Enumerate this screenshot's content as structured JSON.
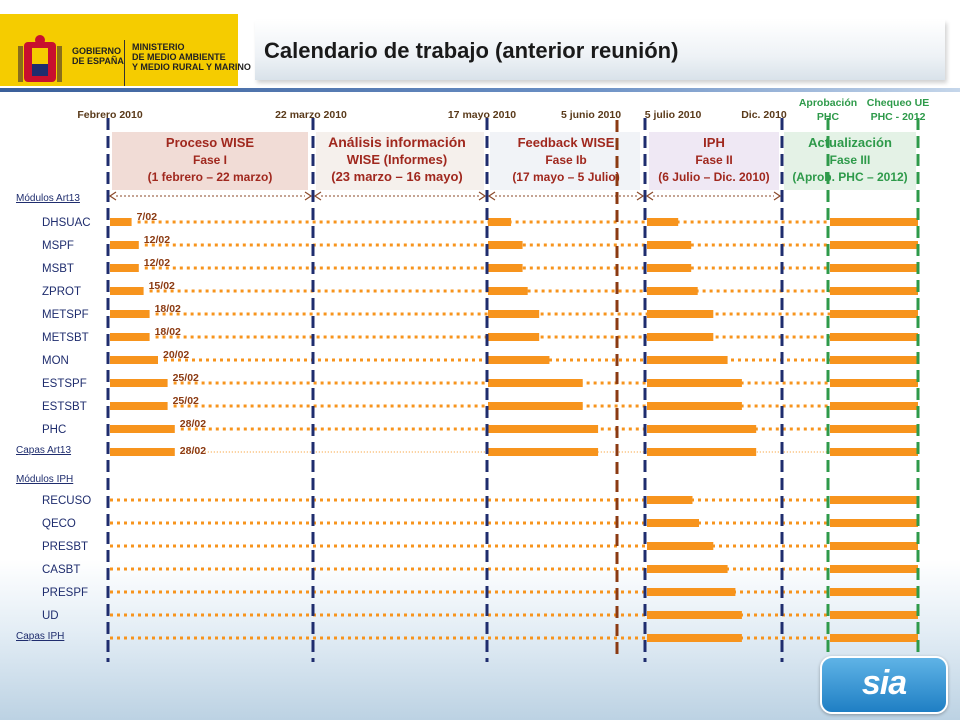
{
  "logo": {
    "gobierno_text": "GOBIERNO\nDE ESPAÑA",
    "ministerio_text": "MINISTERIO\nDE MEDIO AMBIENTE\nY MEDIO RURAL Y MARINO"
  },
  "title": "Calendario de trabajo (anterior reunión)",
  "dates": [
    {
      "label": "Febrero 2010",
      "color": "#5a3a1a"
    },
    {
      "label": "22 marzo 2010",
      "color": "#5a3a1a"
    },
    {
      "label": "17 mayo 2010",
      "color": "#5a3a1a"
    },
    {
      "label": "5 junio 2010",
      "color": "#5a3a1a"
    },
    {
      "label": "5 julio 2010",
      "color": "#5a3a1a"
    },
    {
      "label": "Dic. 2010",
      "color": "#5a3a1a"
    },
    {
      "label": "Aprobación\nPHC",
      "color": "#2e9a4a"
    },
    {
      "label": "Chequeo UE\nPHC - 2012",
      "color": "#2e9a4a"
    }
  ],
  "phases": [
    {
      "lines": [
        "Proceso WISE",
        "Fase I",
        "(1 febrero – 22 marzo)"
      ],
      "color": "#a0281e"
    },
    {
      "lines": [
        "Análisis información",
        "WISE (Informes)",
        "(23 marzo – 16 mayo)"
      ],
      "color": "#a0281e"
    },
    {
      "lines": [
        "Feedback WISE",
        "Fase Ib",
        "(17 mayo – 5 Julio)"
      ],
      "color": "#a0281e"
    },
    {
      "lines": [
        "IPH",
        "Fase II",
        "(6 Julio – Dic. 2010)"
      ],
      "color": "#a0281e"
    },
    {
      "lines": [
        "Actualización",
        "Fase III",
        "(Aprob. PHC – 2012)"
      ],
      "color": "#2e9a4a"
    }
  ],
  "section_labels": [
    "Módulos  Art13",
    "Capas Art13",
    "Módulos  IPH",
    "Capas IPH"
  ],
  "art13_rows": [
    {
      "name": "DHSUAC",
      "date": "7/02",
      "fase1": 0.18,
      "fase1b": 0.18,
      "fase2": 0.24
    },
    {
      "name": "MSPF",
      "date": "12/02",
      "fase1": 0.24,
      "fase1b": 0.27,
      "fase2": 0.34
    },
    {
      "name": "MSBT",
      "date": "12/02",
      "fase1": 0.24,
      "fase1b": 0.27,
      "fase2": 0.34
    },
    {
      "name": "ZPROT",
      "date": "15/02",
      "fase1": 0.28,
      "fase1b": 0.31,
      "fase2": 0.39
    },
    {
      "name": "METSPF",
      "date": "18/02",
      "fase1": 0.33,
      "fase1b": 0.4,
      "fase2": 0.51
    },
    {
      "name": "METSBT",
      "date": "18/02",
      "fase1": 0.33,
      "fase1b": 0.4,
      "fase2": 0.51
    },
    {
      "name": "MON",
      "date": "20/02",
      "fase1": 0.4,
      "fase1b": 0.48,
      "fase2": 0.62
    },
    {
      "name": "ESTSPF",
      "date": "25/02",
      "fase1": 0.48,
      "fase1b": 0.74,
      "fase2": 0.73
    },
    {
      "name": "ESTSBT",
      "date": "25/02",
      "fase1": 0.48,
      "fase1b": 0.74,
      "fase2": 0.73
    },
    {
      "name": "PHC",
      "date": "28/02",
      "fase1": 0.54,
      "fase1b": 0.86,
      "fase2": 0.84
    },
    {
      "name": "Capas Art13",
      "date": "28/02",
      "fase1": 0.54,
      "fase1b": 0.86,
      "fase2": 0.84
    }
  ],
  "iph_rows": [
    {
      "name": "RECUSO",
      "fase2": 0.35
    },
    {
      "name": "QECO",
      "fase2": 0.4
    },
    {
      "name": "PRESBT",
      "fase2": 0.51
    },
    {
      "name": "CASBT",
      "fase2": 0.62
    },
    {
      "name": "PRESPF",
      "fase2": 0.68
    },
    {
      "name": "UD",
      "fase2": 0.73
    },
    {
      "name": "Capas IPH",
      "fase2": 0.73
    }
  ],
  "colors": {
    "bar": "#f7941d",
    "navy": "#1f2d6e",
    "brown": "#8b3a12",
    "green": "#2e9a4a",
    "row_label": "#1f2d6e",
    "date_label": "#8b3a12"
  },
  "brand": "sia"
}
